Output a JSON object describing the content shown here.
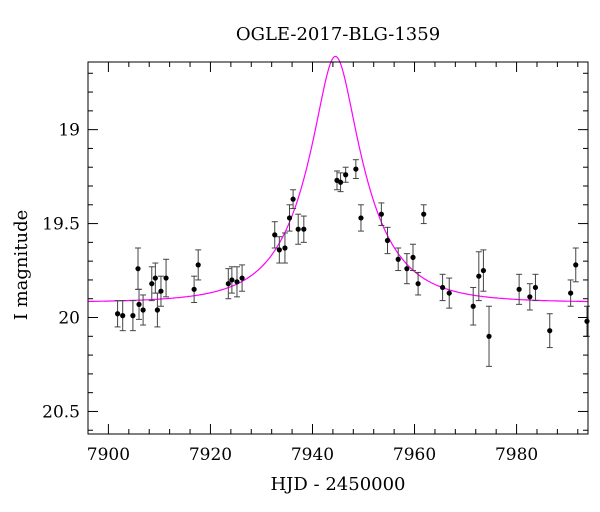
{
  "chart_data": {
    "type": "scatter",
    "title": "OGLE-2017-BLG-1359",
    "xlabel": "HJD - 2450000",
    "ylabel": "I magnitude",
    "xlim": [
      7896,
      7994
    ],
    "ylim": [
      20.62,
      18.64
    ],
    "y_inverted": true,
    "x_ticks": [
      7900,
      7920,
      7940,
      7960,
      7980
    ],
    "x_tick_labels": [
      "7900",
      "7920",
      "7940",
      "7960",
      "7980"
    ],
    "y_ticks": [
      19,
      19.5,
      20,
      20.5
    ],
    "y_tick_labels": [
      "19",
      "19.5",
      "20",
      "20.5"
    ],
    "x_minor_step": 4,
    "y_minor_step": 0.1,
    "grid": false,
    "legend": "none",
    "colors": {
      "points": "#000000",
      "model": "#ff00ff",
      "axes": "#000000"
    },
    "series": [
      {
        "kind": "points_with_errorbars",
        "x": [
          7901.8,
          7902.8,
          7904.8,
          7905.8,
          7906.0,
          7906.8,
          7908.5,
          7909.2,
          7909.6,
          7910.3,
          7911.3,
          7916.8,
          7917.6,
          7923.5,
          7924.2,
          7925.2,
          7926.2,
          7932.6,
          7933.5,
          7934.6,
          7935.5,
          7936.2,
          7937.2,
          7938.3,
          7944.8,
          7945.5,
          7946.5,
          7948.5,
          7949.5,
          7953.5,
          7954.7,
          7956.8,
          7958.5,
          7959.7,
          7960.7,
          7961.8,
          7965.5,
          7966.8,
          7971.5,
          7972.6,
          7973.5,
          7974.6,
          7980.5,
          7982.6,
          7983.7,
          7986.5,
          7990.6,
          7991.6,
          7993.8
        ],
        "y": [
          19.98,
          19.99,
          19.99,
          19.74,
          19.93,
          19.96,
          19.82,
          19.79,
          19.96,
          19.86,
          19.79,
          19.85,
          19.72,
          19.82,
          19.8,
          19.81,
          19.79,
          19.56,
          19.64,
          19.63,
          19.47,
          19.37,
          19.53,
          19.53,
          19.27,
          19.28,
          19.24,
          19.21,
          19.47,
          19.45,
          19.59,
          19.69,
          19.74,
          19.68,
          19.82,
          19.45,
          19.84,
          19.87,
          19.94,
          19.78,
          19.75,
          20.1,
          19.85,
          19.89,
          19.84,
          20.07,
          19.87,
          19.72,
          20.02
        ],
        "err": [
          0.07,
          0.08,
          0.08,
          0.11,
          0.08,
          0.08,
          0.09,
          0.08,
          0.09,
          0.08,
          0.1,
          0.07,
          0.08,
          0.08,
          0.07,
          0.08,
          0.07,
          0.07,
          0.07,
          0.08,
          0.07,
          0.05,
          0.08,
          0.07,
          0.05,
          0.05,
          0.04,
          0.05,
          0.07,
          0.06,
          0.07,
          0.06,
          0.08,
          0.07,
          0.06,
          0.05,
          0.07,
          0.08,
          0.1,
          0.13,
          0.11,
          0.16,
          0.08,
          0.07,
          0.07,
          0.09,
          0.07,
          0.09,
          0.08
        ]
      },
      {
        "kind": "model_curve",
        "baseline": 19.92,
        "t0": 7944.5,
        "u0": 0.31,
        "tE": 11.5
      }
    ]
  }
}
